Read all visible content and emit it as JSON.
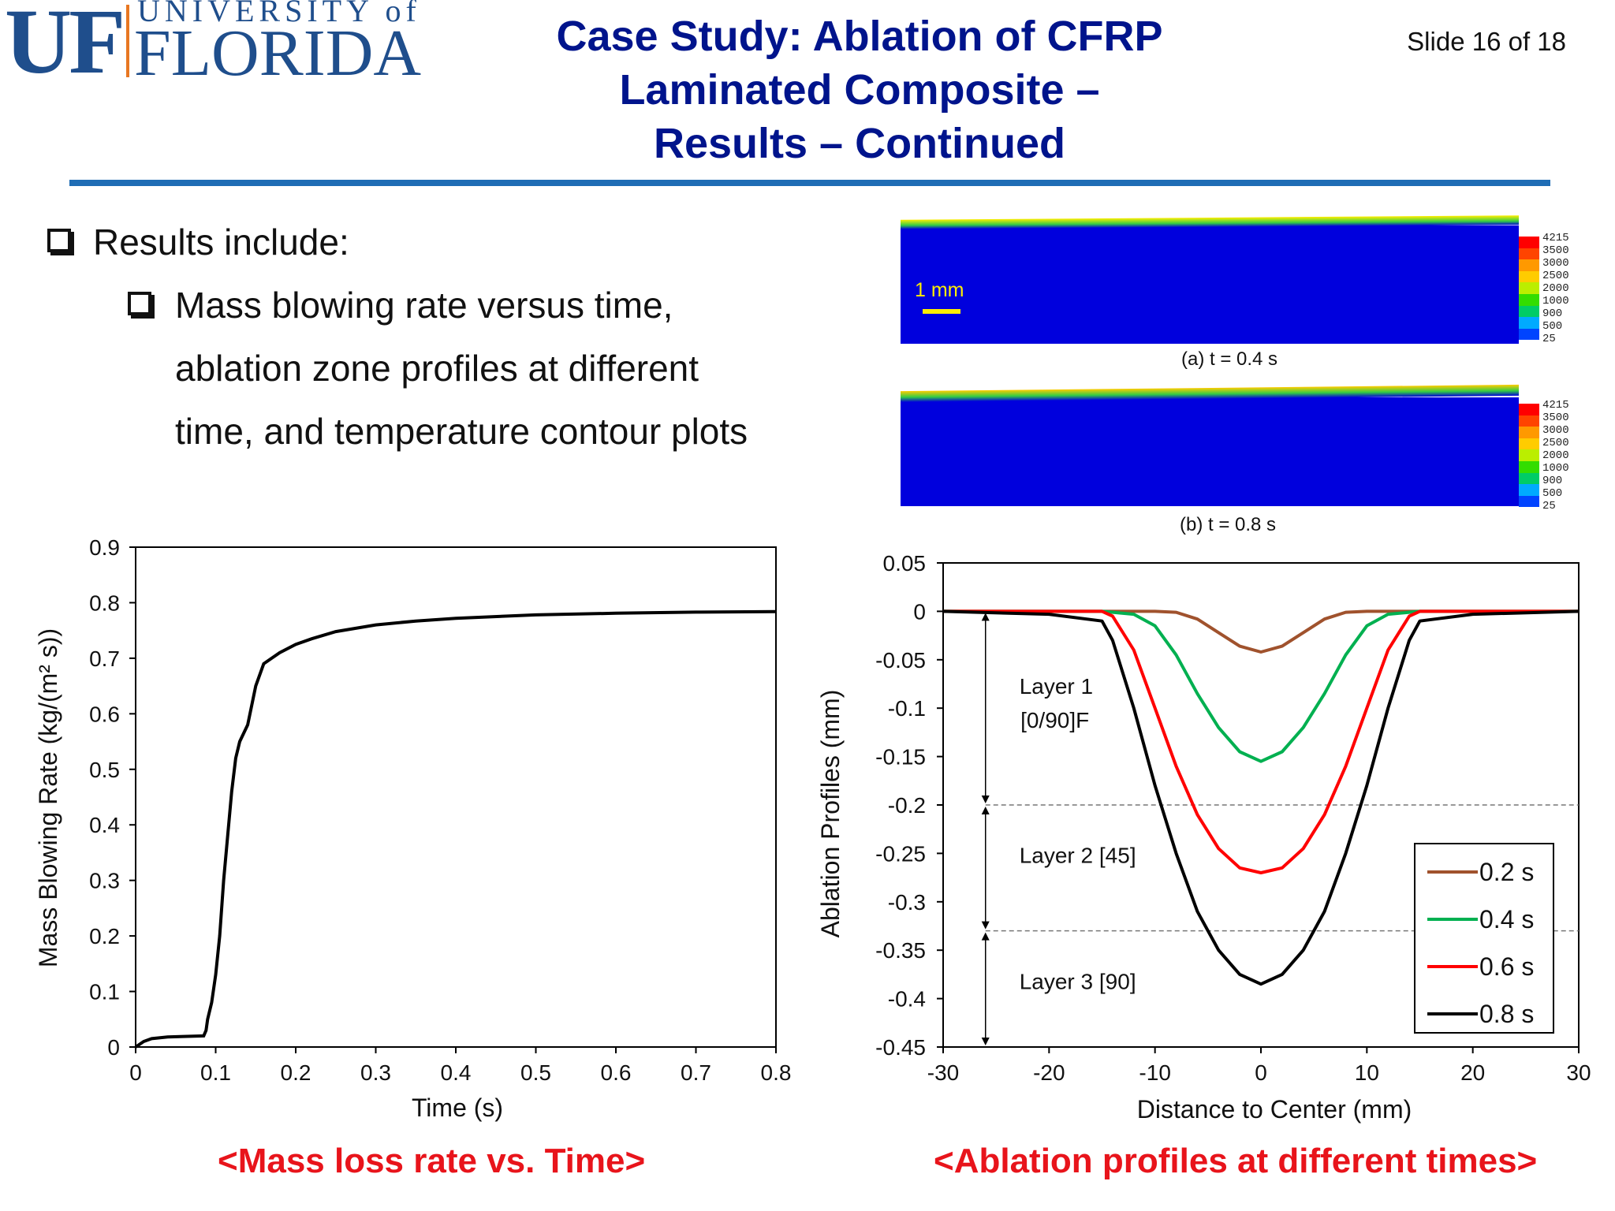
{
  "logo": {
    "initials": "UF",
    "university": "UNIVERSITY of",
    "name": "FLORIDA"
  },
  "title": {
    "line1": "Case Study: Ablation of CFRP",
    "line2": "Laminated Composite –",
    "line3": "Results – Continued"
  },
  "slide_number": "Slide 16 of 18",
  "bullets": {
    "main": "Results include:",
    "sub_lines": [
      "Mass blowing rate versus time,",
      "ablation zone profiles at different",
      "time, and temperature contour plots"
    ]
  },
  "contours": {
    "scale_label": "1 mm",
    "legend_values": [
      "4215",
      "3500",
      "3000",
      "2500",
      "2000",
      "1000",
      "900",
      "500",
      "25"
    ],
    "legend_colors": [
      "#ff0000",
      "#ff4400",
      "#ff9900",
      "#ffcc00",
      "#bbee00",
      "#33dd00",
      "#00cc66",
      "#00aaff",
      "#0044ff"
    ],
    "caption_a": "(a) t = 0.4 s",
    "caption_b": "(b) t = 0.8 s",
    "field_color": "#0000dd"
  },
  "chart_captions": {
    "left": "<Mass loss rate vs. Time>",
    "right": "<Ablation profiles at different times>"
  },
  "chart_data": [
    {
      "type": "line",
      "xlabel": "Time (s)",
      "ylabel": "Mass Blowing Rate (kg/(m² s))",
      "xlim": [
        0,
        0.8
      ],
      "ylim": [
        0,
        0.9
      ],
      "xticks": [
        "0",
        "0.1",
        "0.2",
        "0.3",
        "0.4",
        "0.5",
        "0.6",
        "0.7",
        "0.8"
      ],
      "yticks": [
        "0",
        "0.1",
        "0.2",
        "0.3",
        "0.4",
        "0.5",
        "0.6",
        "0.7",
        "0.8",
        "0.9"
      ],
      "grid": false,
      "series": [
        {
          "color": "#000000",
          "x": [
            0,
            0.01,
            0.02,
            0.04,
            0.06,
            0.085,
            0.088,
            0.09,
            0.095,
            0.1,
            0.105,
            0.11,
            0.115,
            0.12,
            0.125,
            0.13,
            0.14,
            0.15,
            0.16,
            0.17,
            0.18,
            0.2,
            0.22,
            0.25,
            0.3,
            0.35,
            0.4,
            0.5,
            0.6,
            0.7,
            0.8
          ],
          "y": [
            0,
            0.01,
            0.015,
            0.018,
            0.019,
            0.02,
            0.03,
            0.05,
            0.08,
            0.13,
            0.2,
            0.3,
            0.38,
            0.46,
            0.52,
            0.55,
            0.58,
            0.65,
            0.69,
            0.7,
            0.71,
            0.725,
            0.735,
            0.748,
            0.76,
            0.767,
            0.772,
            0.778,
            0.781,
            0.783,
            0.784
          ]
        }
      ]
    },
    {
      "type": "line",
      "xlabel": "Distance to Center (mm)",
      "ylabel": "Ablation Profiles (mm)",
      "xlim": [
        -30,
        30
      ],
      "ylim": [
        -0.45,
        0.05
      ],
      "xticks": [
        "-30",
        "-20",
        "-10",
        "0",
        "10",
        "20",
        "30"
      ],
      "yticks": [
        "0.05",
        "0",
        "-0.05",
        "-0.1",
        "-0.15",
        "-0.2",
        "-0.25",
        "-0.3",
        "-0.35",
        "-0.4",
        "-0.45"
      ],
      "legend_position": "bottom-right",
      "layer_boundaries": [
        -0.2,
        -0.33
      ],
      "layer_labels": [
        {
          "line1": "Layer 1",
          "line2": "[0/90]F"
        },
        {
          "line1": "Layer 2 [45]",
          "line2": ""
        },
        {
          "line1": "Layer 3 [90]",
          "line2": ""
        }
      ],
      "series": [
        {
          "name": "0.2 s",
          "color": "#a0522d",
          "x": [
            -30,
            -15,
            -10,
            -8,
            -6,
            -4,
            -2,
            0,
            2,
            4,
            6,
            8,
            10,
            15,
            30
          ],
          "y": [
            0,
            0,
            0,
            -0.001,
            -0.008,
            -0.022,
            -0.036,
            -0.042,
            -0.036,
            -0.022,
            -0.008,
            -0.001,
            0,
            0,
            0
          ]
        },
        {
          "name": "0.4 s",
          "color": "#00b050",
          "x": [
            -30,
            -15,
            -12,
            -10,
            -8,
            -6,
            -4,
            -2,
            0,
            2,
            4,
            6,
            8,
            10,
            12,
            15,
            30
          ],
          "y": [
            0,
            0,
            -0.003,
            -0.015,
            -0.045,
            -0.085,
            -0.12,
            -0.145,
            -0.155,
            -0.145,
            -0.12,
            -0.085,
            -0.045,
            -0.015,
            -0.003,
            0,
            0
          ]
        },
        {
          "name": "0.6 s",
          "color": "#ff0000",
          "x": [
            -30,
            -15,
            -14,
            -12,
            -10,
            -8,
            -6,
            -4,
            -2,
            0,
            2,
            4,
            6,
            8,
            10,
            12,
            14,
            15,
            30
          ],
          "y": [
            0,
            0,
            -0.005,
            -0.04,
            -0.1,
            -0.16,
            -0.21,
            -0.245,
            -0.265,
            -0.27,
            -0.265,
            -0.245,
            -0.21,
            -0.16,
            -0.1,
            -0.04,
            -0.005,
            0,
            0
          ]
        },
        {
          "name": "0.8 s",
          "color": "#000000",
          "x": [
            -30,
            -20,
            -15,
            -14,
            -12,
            -10,
            -8,
            -6,
            -4,
            -2,
            0,
            2,
            4,
            6,
            8,
            10,
            12,
            14,
            15,
            20,
            30
          ],
          "y": [
            0,
            -0.003,
            -0.01,
            -0.03,
            -0.1,
            -0.18,
            -0.25,
            -0.31,
            -0.35,
            -0.375,
            -0.385,
            -0.375,
            -0.35,
            -0.31,
            -0.25,
            -0.18,
            -0.1,
            -0.03,
            -0.01,
            -0.003,
            0
          ]
        }
      ]
    }
  ]
}
